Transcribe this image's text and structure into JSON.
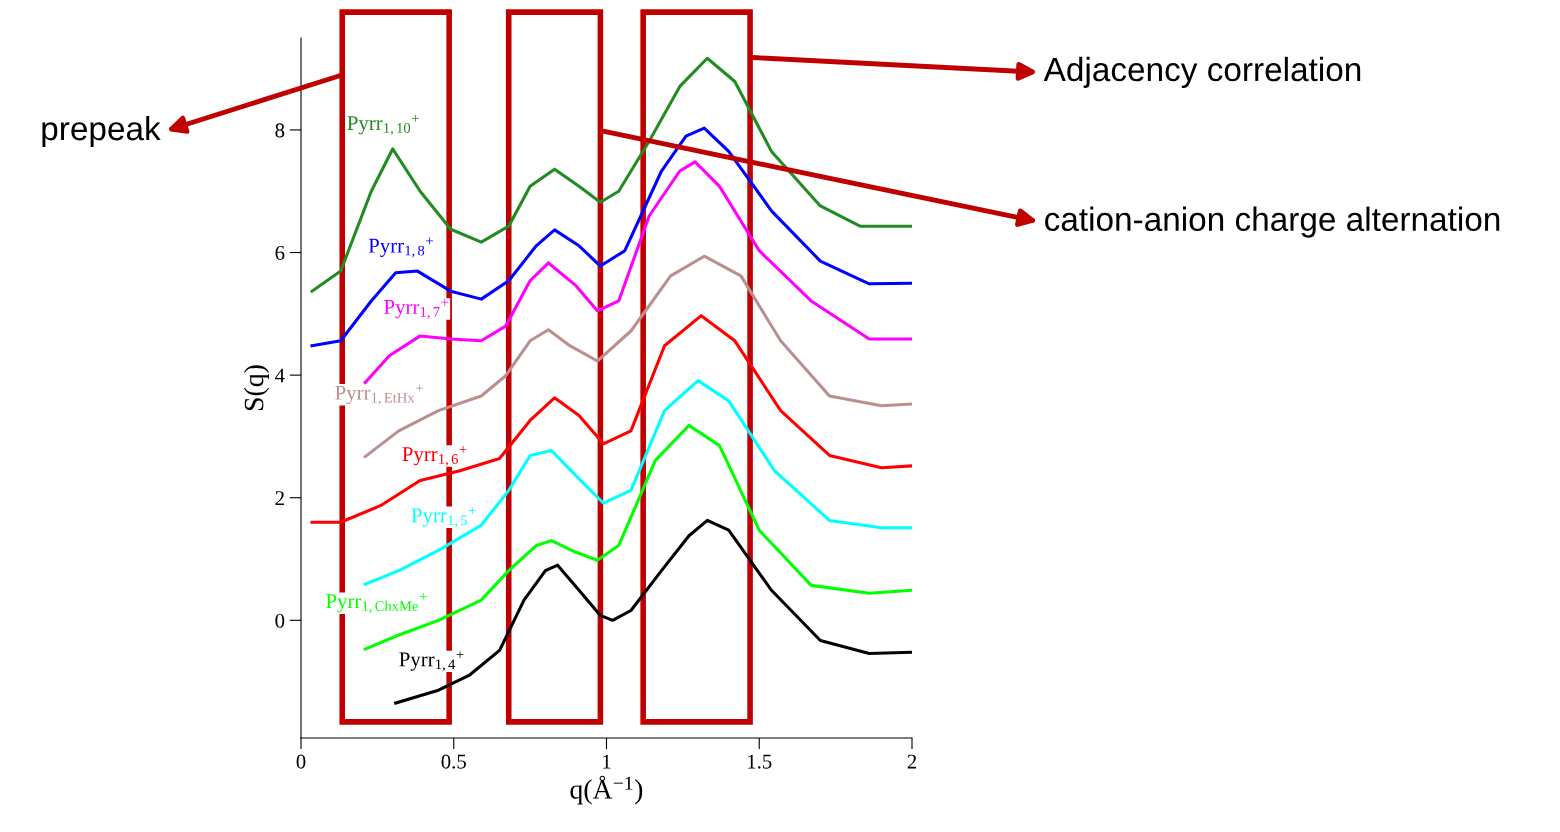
{
  "chart_data": {
    "type": "line",
    "xlabel": "q(Å$^{−1}$)",
    "ylabel": "S(q)",
    "xlim": [
      0,
      2
    ],
    "ylim": [
      -1.92,
      9.5
    ],
    "xticks": [
      0,
      0.5,
      1,
      1.5,
      2
    ],
    "yticks": [
      0,
      2,
      4,
      6,
      8
    ],
    "grid": false,
    "legend": false,
    "marker": "none",
    "line_style": "solid",
    "series": [
      {
        "name": "Pyrr$_{1,10}$$^{+}$",
        "color": "#228b22",
        "x": [
          0.036,
          0.13,
          0.23,
          0.3,
          0.39,
          0.49,
          0.59,
          0.68,
          0.75,
          0.83,
          0.91,
          0.98,
          1.04,
          1.14,
          1.24,
          1.33,
          1.42,
          1.54,
          1.7,
          1.83,
          2.0
        ],
        "values": [
          5.37,
          5.7,
          7.0,
          7.69,
          7.0,
          6.38,
          6.17,
          6.43,
          7.08,
          7.36,
          7.08,
          6.82,
          7.0,
          7.82,
          8.71,
          9.17,
          8.79,
          7.65,
          6.76,
          6.43,
          6.43
        ]
      },
      {
        "name": "Pyrr$_{1,8}$$^{+}$",
        "color": "#0000ff",
        "x": [
          0.036,
          0.13,
          0.23,
          0.31,
          0.38,
          0.49,
          0.59,
          0.68,
          0.77,
          0.83,
          0.91,
          0.98,
          1.06,
          1.18,
          1.26,
          1.32,
          1.4,
          1.54,
          1.7,
          1.86,
          2.0
        ],
        "values": [
          4.48,
          4.56,
          5.21,
          5.67,
          5.7,
          5.37,
          5.24,
          5.54,
          6.11,
          6.37,
          6.11,
          5.78,
          6.03,
          7.33,
          7.9,
          8.03,
          7.65,
          6.68,
          5.86,
          5.49,
          5.5
        ]
      },
      {
        "name": "Pyrr$_{1,7}$$^{+}$",
        "color": "#ff00ff",
        "x": [
          0.21,
          0.29,
          0.39,
          0.49,
          0.59,
          0.67,
          0.75,
          0.81,
          0.9,
          0.97,
          1.04,
          1.14,
          1.24,
          1.29,
          1.37,
          1.5,
          1.67,
          1.86,
          2.0
        ],
        "values": [
          3.88,
          4.32,
          4.64,
          4.59,
          4.56,
          4.8,
          5.54,
          5.83,
          5.46,
          5.05,
          5.21,
          6.6,
          7.33,
          7.48,
          7.08,
          6.03,
          5.21,
          4.59,
          4.59
        ]
      },
      {
        "name": "Pyrr$_{1,EtHx}$$^{+}$",
        "color": "#bc8f8f",
        "x": [
          0.21,
          0.32,
          0.45,
          0.59,
          0.67,
          0.75,
          0.81,
          0.88,
          0.97,
          1.08,
          1.21,
          1.32,
          1.44,
          1.57,
          1.73,
          1.9,
          2.0
        ],
        "values": [
          2.67,
          3.09,
          3.42,
          3.66,
          3.99,
          4.56,
          4.74,
          4.48,
          4.23,
          4.72,
          5.62,
          5.94,
          5.62,
          4.56,
          3.66,
          3.5,
          3.53
        ]
      },
      {
        "name": "Pyrr$_{1,6}$$^{+}$",
        "color": "#ff0000",
        "x": [
          0.036,
          0.13,
          0.26,
          0.39,
          0.52,
          0.65,
          0.75,
          0.83,
          0.91,
          0.99,
          1.08,
          1.19,
          1.31,
          1.42,
          1.57,
          1.73,
          1.9,
          2.0
        ],
        "values": [
          1.6,
          1.6,
          1.87,
          2.28,
          2.44,
          2.64,
          3.26,
          3.63,
          3.34,
          2.88,
          3.09,
          4.48,
          4.97,
          4.56,
          3.42,
          2.69,
          2.49,
          2.52
        ]
      },
      {
        "name": "Pyrr$_{1,5}$$^{+}$",
        "color": "#00ffff",
        "x": [
          0.21,
          0.32,
          0.45,
          0.59,
          0.68,
          0.75,
          0.82,
          0.9,
          0.99,
          1.08,
          1.19,
          1.3,
          1.4,
          1.55,
          1.73,
          1.9,
          2.0
        ],
        "values": [
          0.59,
          0.81,
          1.14,
          1.55,
          2.12,
          2.69,
          2.77,
          2.36,
          1.91,
          2.12,
          3.42,
          3.91,
          3.58,
          2.44,
          1.63,
          1.51,
          1.51
        ]
      },
      {
        "name": "Pyrr$_{1,ChxMe}$$^{+}$",
        "color": "#00ff00",
        "x": [
          0.21,
          0.32,
          0.45,
          0.59,
          0.68,
          0.77,
          0.82,
          0.9,
          0.97,
          1.04,
          1.16,
          1.27,
          1.37,
          1.5,
          1.67,
          1.86,
          2.0
        ],
        "values": [
          -0.47,
          -0.24,
          0.0,
          0.33,
          0.81,
          1.22,
          1.3,
          1.11,
          0.98,
          1.22,
          2.61,
          3.18,
          2.85,
          1.47,
          0.57,
          0.44,
          0.49
        ]
      },
      {
        "name": "Pyrr$_{1,4}$$^{+}$",
        "color": "#000000",
        "x": [
          0.31,
          0.45,
          0.55,
          0.65,
          0.73,
          0.8,
          0.84,
          0.91,
          0.98,
          1.02,
          1.08,
          1.18,
          1.27,
          1.33,
          1.4,
          1.54,
          1.7,
          1.86,
          2.0
        ],
        "values": [
          -1.35,
          -1.14,
          -0.9,
          -0.49,
          0.33,
          0.81,
          0.9,
          0.49,
          0.08,
          0.0,
          0.16,
          0.81,
          1.38,
          1.63,
          1.47,
          0.49,
          -0.33,
          -0.54,
          -0.52
        ]
      }
    ],
    "bands": [
      {
        "axis": "x",
        "from": 0.135,
        "to": 0.485,
        "label": "prepeak",
        "color": "#c00000"
      },
      {
        "axis": "x",
        "from": 0.68,
        "to": 0.98,
        "label": "cation-anion charge alternation",
        "color": "#c00000"
      },
      {
        "axis": "x",
        "from": 1.12,
        "to": 1.47,
        "label": "Adjacency correlation",
        "color": "#c00000"
      }
    ]
  }
}
